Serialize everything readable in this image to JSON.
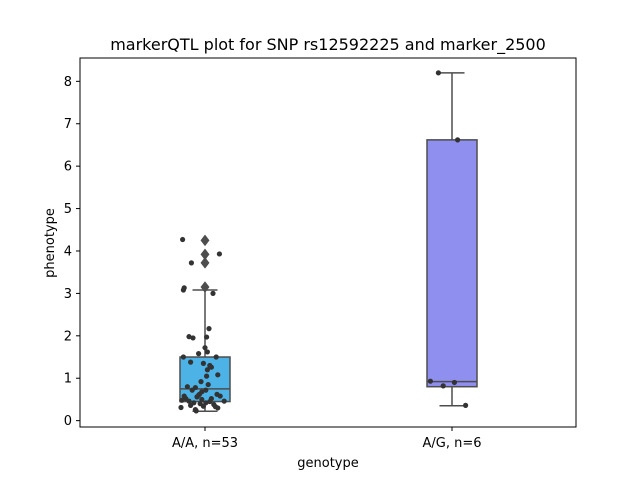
{
  "chart_data": {
    "type": "box",
    "title": "markerQTL plot for SNP rs12592225 and marker_2500",
    "xlabel": "genotype",
    "ylabel": "phenotype",
    "ylim": [
      -0.15,
      8.55
    ],
    "yticks": [
      0,
      1,
      2,
      3,
      4,
      5,
      6,
      7,
      8
    ],
    "categories": [
      "A/A, n=53",
      "A/G, n=6"
    ],
    "boxes": [
      {
        "category": "A/A, n=53",
        "color": "#4db3e6",
        "q1": 0.45,
        "median": 0.75,
        "q3": 1.5,
        "whisker_low": 0.22,
        "whisker_high": 3.08,
        "outliers": [
          3.15,
          3.72,
          3.92,
          4.25
        ]
      },
      {
        "category": "A/G, n=6",
        "color": "#8f8ff0",
        "q1": 0.8,
        "median": 0.92,
        "q3": 6.62,
        "whisker_low": 0.35,
        "whisker_high": 8.2,
        "outliers": []
      }
    ],
    "points": [
      [
        {
          "dx": -0.28,
          "y": 4.27
        },
        {
          "dx": -0.17,
          "y": 3.72
        },
        {
          "dx": 0.18,
          "y": 3.93
        },
        {
          "dx": -0.26,
          "y": 3.13
        },
        {
          "dx": -0.27,
          "y": 3.08
        },
        {
          "dx": 0.1,
          "y": 3.0
        },
        {
          "dx": 0.05,
          "y": 2.17
        },
        {
          "dx": -0.2,
          "y": 1.98
        },
        {
          "dx": -0.15,
          "y": 1.95
        },
        {
          "dx": 0.02,
          "y": 1.97
        },
        {
          "dx": 0.0,
          "y": 1.72
        },
        {
          "dx": 0.03,
          "y": 1.62
        },
        {
          "dx": -0.08,
          "y": 1.58
        },
        {
          "dx": -0.27,
          "y": 1.5
        },
        {
          "dx": 0.14,
          "y": 1.5
        },
        {
          "dx": -0.18,
          "y": 1.38
        },
        {
          "dx": -0.02,
          "y": 1.35
        },
        {
          "dx": 0.06,
          "y": 1.3
        },
        {
          "dx": 0.08,
          "y": 1.26
        },
        {
          "dx": 0.03,
          "y": 1.2
        },
        {
          "dx": 0.16,
          "y": 1.08
        },
        {
          "dx": 0.02,
          "y": 1.05
        },
        {
          "dx": -0.05,
          "y": 0.92
        },
        {
          "dx": 0.04,
          "y": 0.85
        },
        {
          "dx": -0.22,
          "y": 0.8
        },
        {
          "dx": -0.12,
          "y": 0.78
        },
        {
          "dx": 0.01,
          "y": 0.72
        },
        {
          "dx": -0.16,
          "y": 0.72
        },
        {
          "dx": -0.04,
          "y": 0.68
        },
        {
          "dx": -0.07,
          "y": 0.62
        },
        {
          "dx": 0.15,
          "y": 0.62
        },
        {
          "dx": 0.19,
          "y": 0.58
        },
        {
          "dx": -0.26,
          "y": 0.58
        },
        {
          "dx": -0.1,
          "y": 0.56
        },
        {
          "dx": -0.24,
          "y": 0.52
        },
        {
          "dx": -0.04,
          "y": 0.5
        },
        {
          "dx": 0.08,
          "y": 0.52
        },
        {
          "dx": -0.29,
          "y": 0.48
        },
        {
          "dx": -0.2,
          "y": 0.46
        },
        {
          "dx": 0.24,
          "y": 0.46
        },
        {
          "dx": -0.14,
          "y": 0.42
        },
        {
          "dx": 0.01,
          "y": 0.42
        },
        {
          "dx": -0.06,
          "y": 0.4
        },
        {
          "dx": 0.11,
          "y": 0.38
        },
        {
          "dx": -0.18,
          "y": 0.36
        },
        {
          "dx": -0.02,
          "y": 0.34
        },
        {
          "dx": 0.13,
          "y": 0.33
        },
        {
          "dx": -0.3,
          "y": 0.31
        },
        {
          "dx": 0.16,
          "y": 0.3
        },
        {
          "dx": -0.12,
          "y": 0.26
        },
        {
          "dx": -0.11,
          "y": 0.23
        },
        {
          "dx": 0.06,
          "y": 0.45
        },
        {
          "dx": -0.08,
          "y": 0.6
        }
      ],
      [
        {
          "dx": -0.17,
          "y": 8.2
        },
        {
          "dx": 0.07,
          "y": 6.62
        },
        {
          "dx": -0.27,
          "y": 0.93
        },
        {
          "dx": -0.11,
          "y": 0.82
        },
        {
          "dx": 0.03,
          "y": 0.9
        },
        {
          "dx": 0.17,
          "y": 0.36
        }
      ]
    ]
  }
}
